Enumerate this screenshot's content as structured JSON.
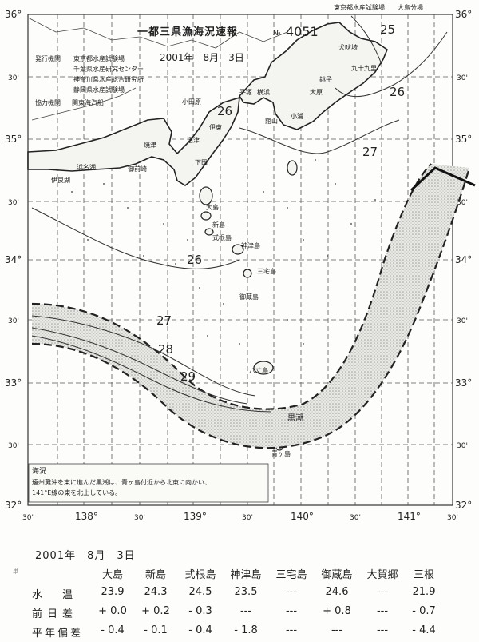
{
  "header": {
    "title": "一都三県漁海況速報",
    "number_prefix": "№",
    "number": "4051",
    "date": "2001年　8月　3日",
    "top_right_org": "東京都水産試験場　　大島分場",
    "publisher_label": "発行機関",
    "publishers": [
      "東京都水産試験場",
      "千葉県水産研究センター",
      "神奈川県水産総合研究所",
      "静岡県水産試験場"
    ],
    "cooperator_label": "協力機関",
    "cooperator": "関東海汽船"
  },
  "map": {
    "lat_labels": {
      "36": "36°",
      "35": "35°",
      "34": "34°",
      "33": "33°",
      "32": "32°"
    },
    "half_lat_label": "30'",
    "lon_labels": [
      "138°",
      "139°",
      "140°",
      "141°"
    ],
    "half_lon_label": "30'",
    "isotherms": [
      "25",
      "26",
      "26",
      "27",
      "26",
      "27",
      "28",
      "29"
    ],
    "kuroshio_label": "黒潮",
    "places": [
      "犬吠埼",
      "九十九里",
      "大原",
      "小浦",
      "館山",
      "平塚",
      "横浜",
      "小田原",
      "下田",
      "伊東",
      "沼津",
      "焼津",
      "御前崎",
      "浜名湖",
      "伊良湖",
      "大島",
      "新島",
      "式根島",
      "神津島",
      "三宅島",
      "御蔵島",
      "八丈島",
      "青ヶ島",
      "銚子"
    ],
    "note_title": "海況",
    "note_lines": [
      "遠州灘沖を東に進んだ黒潮は、青ヶ島付近から北東に向かい、",
      "141°E線の東を北上している。"
    ]
  },
  "table": {
    "date": "2001年　8月　3日",
    "corner_mark": "単",
    "columns": [
      "大島",
      "新島",
      "式根島",
      "神津島",
      "三宅島",
      "御蔵島",
      "大賀郷",
      "三根"
    ],
    "rows": [
      {
        "label": "水　温",
        "values": [
          "23.9",
          "24.3",
          "24.5",
          "23.5",
          "---",
          "24.6",
          "---",
          "21.9"
        ]
      },
      {
        "label": "前日差",
        "values": [
          "+ 0.0",
          "+ 0.2",
          "- 0.3",
          "---",
          "---",
          "+ 0.8",
          "---",
          "- 0.7"
        ]
      },
      {
        "label": "平年偏差",
        "values": [
          "- 0.4",
          "- 0.1",
          "- 0.4",
          "- 1.8",
          "---",
          "---",
          "---",
          "- 4.4"
        ]
      }
    ]
  }
}
